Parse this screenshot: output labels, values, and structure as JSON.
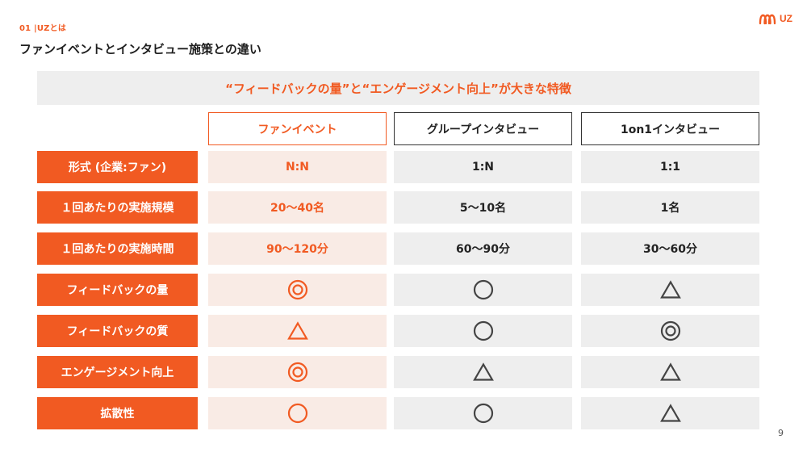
{
  "header": {
    "section_label": "01 |UZとは",
    "title": "ファンイベントとインタビュー施策との違い",
    "logo_text": "UZ"
  },
  "banner": {
    "text": "“フィードバックの量”と“エンゲージメント向上”が大きな特徴"
  },
  "columns": [
    "ファンイベント",
    "グループインタビュー",
    "1on1インタビュー"
  ],
  "rows": [
    {
      "label": "形式 (企業:ファン)",
      "cells": [
        {
          "type": "text",
          "value": "N:N"
        },
        {
          "type": "text",
          "value": "1:N"
        },
        {
          "type": "text",
          "value": "1:1"
        }
      ]
    },
    {
      "label": "１回あたりの実施規模",
      "cells": [
        {
          "type": "text",
          "value": "20〜40名"
        },
        {
          "type": "text",
          "value": "5〜10名"
        },
        {
          "type": "text",
          "value": "1名"
        }
      ]
    },
    {
      "label": "１回あたりの実施時間",
      "cells": [
        {
          "type": "text",
          "value": "90〜120分"
        },
        {
          "type": "text",
          "value": "60〜90分"
        },
        {
          "type": "text",
          "value": "30〜60分"
        }
      ]
    },
    {
      "label": "フィードバックの量",
      "cells": [
        {
          "type": "symbol",
          "value": "double-circle"
        },
        {
          "type": "symbol",
          "value": "circle"
        },
        {
          "type": "symbol",
          "value": "triangle"
        }
      ]
    },
    {
      "label": "フィードバックの質",
      "cells": [
        {
          "type": "symbol",
          "value": "triangle"
        },
        {
          "type": "symbol",
          "value": "circle"
        },
        {
          "type": "symbol",
          "value": "double-circle"
        }
      ]
    },
    {
      "label": "エンゲージメント向上",
      "cells": [
        {
          "type": "symbol",
          "value": "double-circle"
        },
        {
          "type": "symbol",
          "value": "triangle"
        },
        {
          "type": "symbol",
          "value": "triangle"
        }
      ]
    },
    {
      "label": "拡散性",
      "cells": [
        {
          "type": "symbol",
          "value": "circle"
        },
        {
          "type": "symbol",
          "value": "circle"
        },
        {
          "type": "symbol",
          "value": "triangle"
        }
      ]
    }
  ],
  "colors": {
    "accent": "#f15a22",
    "dark": "#444444",
    "fan_cell_bg": "#f9ebe5",
    "gray_cell_bg": "#eeeeee"
  },
  "footer": {
    "page_number": "9"
  }
}
